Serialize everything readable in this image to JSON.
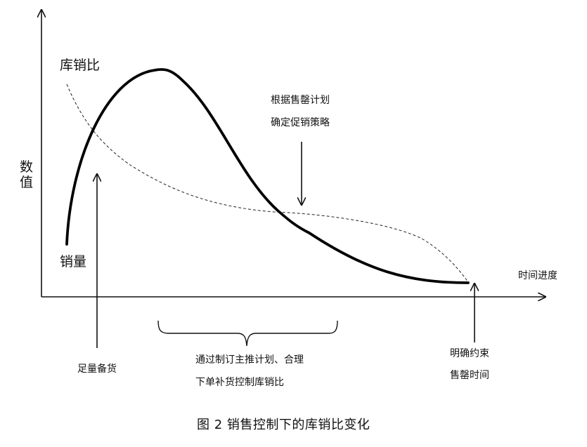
{
  "axes": {
    "y_label": "数值",
    "x_label": "时间进度"
  },
  "curves": {
    "ratio_label": "库销比",
    "sales_label": "销量"
  },
  "annotations": {
    "plan_line1": "根据售罄计划",
    "plan_line2": "确定促销策略",
    "stock_label": "足量备货",
    "mid_line1": "通过制订主推计划、合理",
    "mid_line2": "下单补货控制库销比",
    "end_line1": "明确约束",
    "end_line2": "售罄时间"
  },
  "caption": "图 2 销售控制下的库销比变化"
}
